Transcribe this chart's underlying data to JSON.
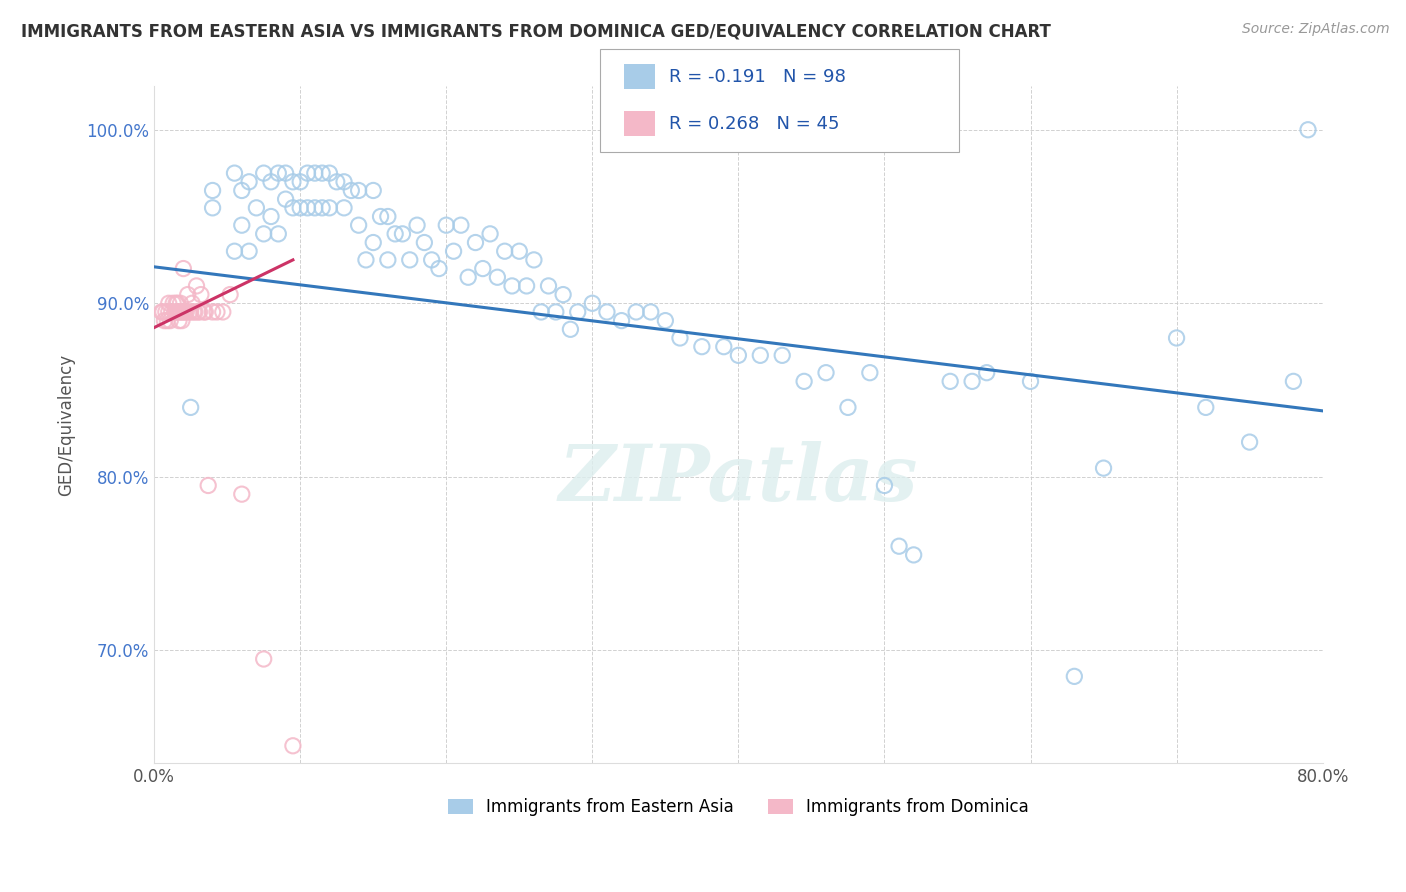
{
  "title": "IMMIGRANTS FROM EASTERN ASIA VS IMMIGRANTS FROM DOMINICA GED/EQUIVALENCY CORRELATION CHART",
  "source": "Source: ZipAtlas.com",
  "ylabel": "GED/Equivalency",
  "legend_label1": "Immigrants from Eastern Asia",
  "legend_label2": "Immigrants from Dominica",
  "R1": -0.191,
  "N1": 98,
  "R2": 0.268,
  "N2": 45,
  "xlim": [
    0.0,
    0.8
  ],
  "ylim": [
    0.635,
    1.025
  ],
  "x_ticks": [
    0.0,
    0.1,
    0.2,
    0.3,
    0.4,
    0.5,
    0.6,
    0.7,
    0.8
  ],
  "x_tick_labels": [
    "0.0%",
    "",
    "",
    "",
    "",
    "",
    "",
    "",
    "80.0%"
  ],
  "y_ticks": [
    0.7,
    0.8,
    0.9,
    1.0
  ],
  "y_tick_labels": [
    "70.0%",
    "80.0%",
    "90.0%",
    "100.0%"
  ],
  "color_blue": "#a8cce8",
  "color_pink": "#f4b8c8",
  "line_color_blue": "#3377bb",
  "line_color_pink": "#cc3366",
  "watermark": "ZIPatlas",
  "blue_trend_x0": 0.0,
  "blue_trend_y0": 0.921,
  "blue_trend_x1": 0.8,
  "blue_trend_y1": 0.838,
  "pink_trend_x0": 0.0,
  "pink_trend_y0": 0.886,
  "pink_trend_x1": 0.095,
  "pink_trend_y1": 0.925,
  "blue_scatter_x": [
    0.025,
    0.04,
    0.04,
    0.055,
    0.055,
    0.06,
    0.06,
    0.065,
    0.065,
    0.07,
    0.075,
    0.075,
    0.08,
    0.08,
    0.085,
    0.085,
    0.09,
    0.09,
    0.095,
    0.095,
    0.1,
    0.1,
    0.105,
    0.105,
    0.11,
    0.11,
    0.115,
    0.115,
    0.12,
    0.12,
    0.125,
    0.13,
    0.13,
    0.135,
    0.14,
    0.14,
    0.145,
    0.15,
    0.15,
    0.155,
    0.16,
    0.16,
    0.165,
    0.17,
    0.175,
    0.18,
    0.185,
    0.19,
    0.195,
    0.2,
    0.205,
    0.21,
    0.215,
    0.22,
    0.225,
    0.23,
    0.235,
    0.24,
    0.245,
    0.25,
    0.255,
    0.26,
    0.265,
    0.27,
    0.275,
    0.28,
    0.285,
    0.29,
    0.3,
    0.31,
    0.32,
    0.33,
    0.34,
    0.35,
    0.36,
    0.375,
    0.39,
    0.4,
    0.415,
    0.43,
    0.445,
    0.46,
    0.475,
    0.49,
    0.5,
    0.51,
    0.52,
    0.545,
    0.56,
    0.57,
    0.6,
    0.63,
    0.65,
    0.7,
    0.72,
    0.75,
    0.78,
    0.79
  ],
  "blue_scatter_y": [
    0.84,
    0.955,
    0.965,
    0.975,
    0.93,
    0.965,
    0.945,
    0.97,
    0.93,
    0.955,
    0.975,
    0.94,
    0.97,
    0.95,
    0.975,
    0.94,
    0.975,
    0.96,
    0.97,
    0.955,
    0.97,
    0.955,
    0.975,
    0.955,
    0.975,
    0.955,
    0.975,
    0.955,
    0.975,
    0.955,
    0.97,
    0.97,
    0.955,
    0.965,
    0.965,
    0.945,
    0.925,
    0.965,
    0.935,
    0.95,
    0.95,
    0.925,
    0.94,
    0.94,
    0.925,
    0.945,
    0.935,
    0.925,
    0.92,
    0.945,
    0.93,
    0.945,
    0.915,
    0.935,
    0.92,
    0.94,
    0.915,
    0.93,
    0.91,
    0.93,
    0.91,
    0.925,
    0.895,
    0.91,
    0.895,
    0.905,
    0.885,
    0.895,
    0.9,
    0.895,
    0.89,
    0.895,
    0.895,
    0.89,
    0.88,
    0.875,
    0.875,
    0.87,
    0.87,
    0.87,
    0.855,
    0.86,
    0.84,
    0.86,
    0.795,
    0.76,
    0.755,
    0.855,
    0.855,
    0.86,
    0.855,
    0.685,
    0.805,
    0.88,
    0.84,
    0.82,
    0.855,
    1.0
  ],
  "pink_scatter_x": [
    0.005,
    0.006,
    0.007,
    0.008,
    0.009,
    0.01,
    0.01,
    0.011,
    0.012,
    0.013,
    0.014,
    0.015,
    0.015,
    0.016,
    0.016,
    0.017,
    0.017,
    0.018,
    0.018,
    0.019,
    0.019,
    0.02,
    0.02,
    0.021,
    0.022,
    0.023,
    0.024,
    0.025,
    0.026,
    0.027,
    0.028,
    0.029,
    0.03,
    0.031,
    0.032,
    0.034,
    0.035,
    0.037,
    0.04,
    0.043,
    0.047,
    0.052,
    0.06,
    0.075,
    0.095
  ],
  "pink_scatter_y": [
    0.895,
    0.895,
    0.89,
    0.895,
    0.89,
    0.9,
    0.895,
    0.89,
    0.895,
    0.9,
    0.895,
    0.9,
    0.895,
    0.895,
    0.9,
    0.895,
    0.89,
    0.895,
    0.9,
    0.895,
    0.89,
    0.895,
    0.92,
    0.895,
    0.895,
    0.905,
    0.895,
    0.895,
    0.9,
    0.895,
    0.895,
    0.91,
    0.895,
    0.895,
    0.905,
    0.895,
    0.895,
    0.795,
    0.895,
    0.895,
    0.895,
    0.905,
    0.79,
    0.695,
    0.645
  ]
}
